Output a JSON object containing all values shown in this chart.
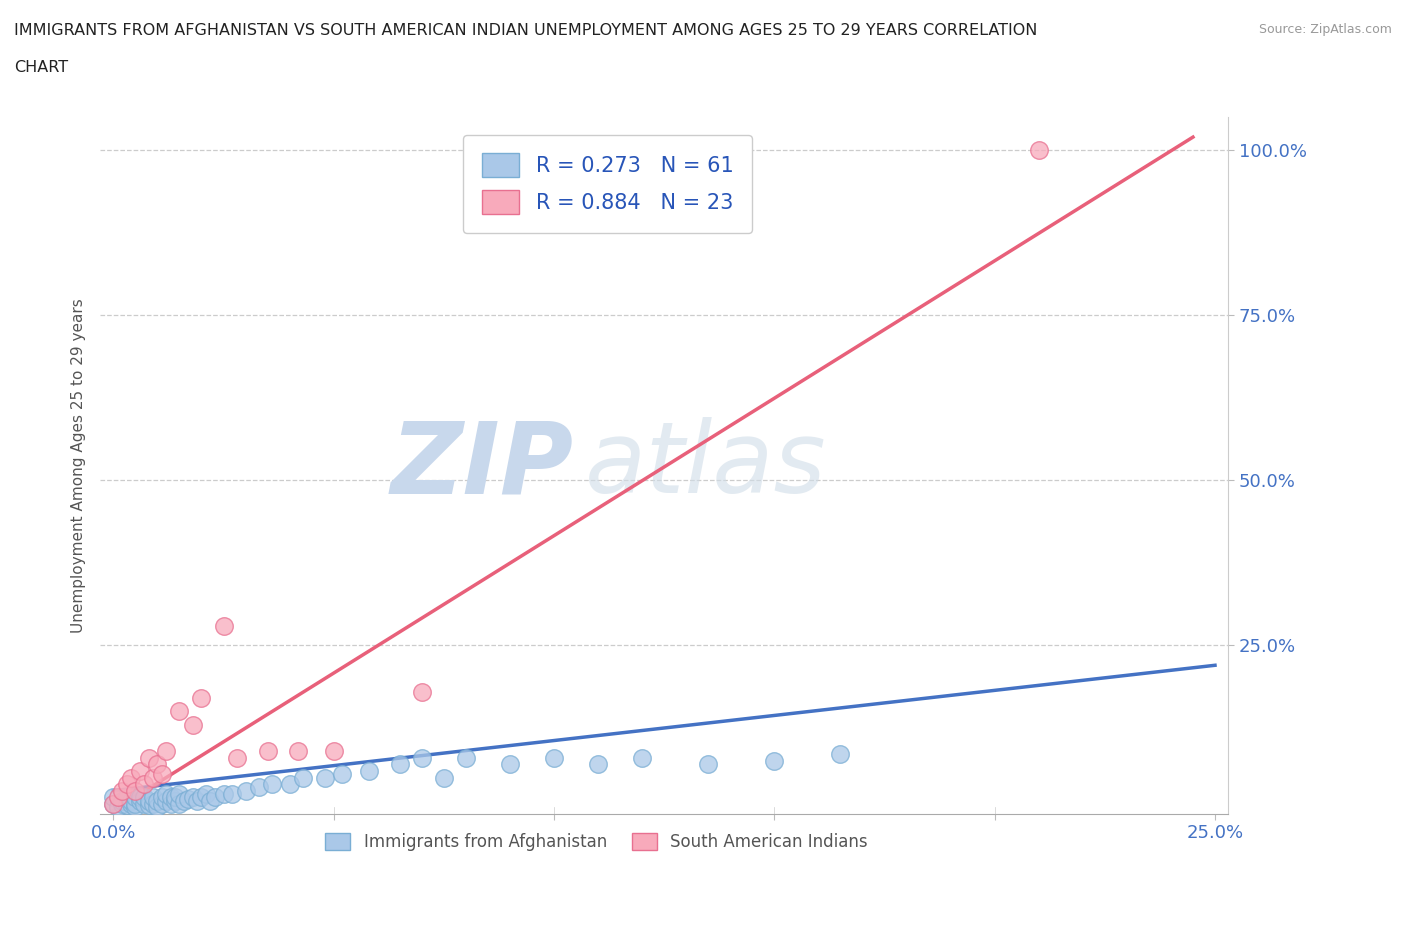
{
  "title_line1": "IMMIGRANTS FROM AFGHANISTAN VS SOUTH AMERICAN INDIAN UNEMPLOYMENT AMONG AGES 25 TO 29 YEARS CORRELATION",
  "title_line2": "CHART",
  "source": "Source: ZipAtlas.com",
  "ylabel": "Unemployment Among Ages 25 to 29 years",
  "xlim": [
    -0.003,
    0.253
  ],
  "ylim": [
    -0.005,
    1.05
  ],
  "xticks": [
    0.0,
    0.05,
    0.1,
    0.15,
    0.2,
    0.25
  ],
  "yticks": [
    0.25,
    0.5,
    0.75,
    1.0
  ],
  "xticklabels": [
    "0.0%",
    "",
    "",
    "",
    "",
    "25.0%"
  ],
  "yticklabels": [
    "25.0%",
    "50.0%",
    "75.0%",
    "100.0%"
  ],
  "afghanistan_color": "#aac8e8",
  "afghanistan_edge": "#7aaed4",
  "south_american_color": "#f8aabb",
  "south_american_edge": "#e87090",
  "afghanistan_R": 0.273,
  "afghanistan_N": 61,
  "south_american_R": 0.884,
  "south_american_N": 23,
  "reg_line_afghanistan_color": "#4472c4",
  "reg_line_south_american_color": "#e8607a",
  "watermark_color": "#c8d8ec",
  "legend_R_N_color": "#2855b8",
  "background_color": "#ffffff",
  "afg_line_x": [
    0.0,
    0.25
  ],
  "afg_line_y": [
    0.03,
    0.22
  ],
  "sa_line_x": [
    0.0,
    0.245
  ],
  "sa_line_y": [
    0.0,
    1.02
  ],
  "afghanistan_scatter_x": [
    0.0,
    0.0,
    0.001,
    0.002,
    0.002,
    0.003,
    0.003,
    0.004,
    0.004,
    0.005,
    0.005,
    0.005,
    0.006,
    0.006,
    0.007,
    0.007,
    0.008,
    0.008,
    0.009,
    0.009,
    0.01,
    0.01,
    0.011,
    0.011,
    0.012,
    0.012,
    0.013,
    0.013,
    0.014,
    0.014,
    0.015,
    0.015,
    0.016,
    0.017,
    0.018,
    0.019,
    0.02,
    0.021,
    0.022,
    0.023,
    0.025,
    0.027,
    0.03,
    0.033,
    0.036,
    0.04,
    0.043,
    0.048,
    0.052,
    0.058,
    0.065,
    0.07,
    0.075,
    0.08,
    0.09,
    0.1,
    0.11,
    0.12,
    0.135,
    0.15,
    0.165
  ],
  "afghanistan_scatter_y": [
    0.01,
    0.02,
    0.005,
    0.01,
    0.015,
    0.008,
    0.02,
    0.01,
    0.015,
    0.005,
    0.01,
    0.02,
    0.015,
    0.02,
    0.01,
    0.02,
    0.008,
    0.015,
    0.01,
    0.02,
    0.005,
    0.015,
    0.01,
    0.02,
    0.015,
    0.025,
    0.01,
    0.02,
    0.015,
    0.02,
    0.01,
    0.025,
    0.015,
    0.018,
    0.02,
    0.015,
    0.02,
    0.025,
    0.015,
    0.02,
    0.025,
    0.025,
    0.03,
    0.035,
    0.04,
    0.04,
    0.05,
    0.05,
    0.055,
    0.06,
    0.07,
    0.08,
    0.05,
    0.08,
    0.07,
    0.08,
    0.07,
    0.08,
    0.07,
    0.075,
    0.085
  ],
  "south_american_scatter_x": [
    0.0,
    0.001,
    0.002,
    0.003,
    0.004,
    0.005,
    0.006,
    0.007,
    0.008,
    0.009,
    0.01,
    0.011,
    0.012,
    0.015,
    0.018,
    0.02,
    0.025,
    0.028,
    0.035,
    0.042,
    0.05,
    0.07,
    0.21
  ],
  "south_american_scatter_y": [
    0.01,
    0.02,
    0.03,
    0.04,
    0.05,
    0.03,
    0.06,
    0.04,
    0.08,
    0.05,
    0.07,
    0.055,
    0.09,
    0.15,
    0.13,
    0.17,
    0.28,
    0.08,
    0.09,
    0.09,
    0.09,
    0.18,
    1.0
  ]
}
